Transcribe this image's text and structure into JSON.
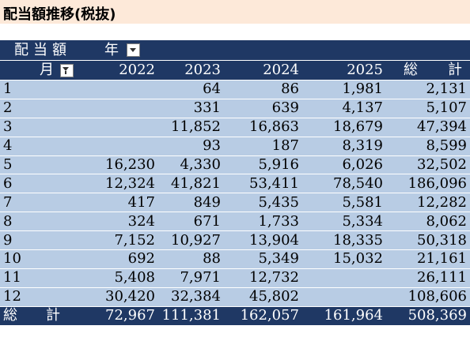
{
  "title": "配当額推移(税抜)",
  "pivot": {
    "corner_label": "配当額",
    "column_field": "年",
    "row_field": "月",
    "years": [
      "2022",
      "2023",
      "2024",
      "2025"
    ],
    "grand_total_label_1": "総",
    "grand_total_label_2": "計",
    "rows": [
      {
        "month": "1",
        "v2022": "",
        "v2023": "64",
        "v2024": "86",
        "v2025": "1,981",
        "total": "2,131"
      },
      {
        "month": "2",
        "v2022": "",
        "v2023": "331",
        "v2024": "639",
        "v2025": "4,137",
        "total": "5,107"
      },
      {
        "month": "3",
        "v2022": "",
        "v2023": "11,852",
        "v2024": "16,863",
        "v2025": "18,679",
        "total": "47,394"
      },
      {
        "month": "4",
        "v2022": "",
        "v2023": "93",
        "v2024": "187",
        "v2025": "8,319",
        "total": "8,599"
      },
      {
        "month": "5",
        "v2022": "16,230",
        "v2023": "4,330",
        "v2024": "5,916",
        "v2025": "6,026",
        "total": "32,502"
      },
      {
        "month": "6",
        "v2022": "12,324",
        "v2023": "41,821",
        "v2024": "53,411",
        "v2025": "78,540",
        "total": "186,096"
      },
      {
        "month": "7",
        "v2022": "417",
        "v2023": "849",
        "v2024": "5,435",
        "v2025": "5,581",
        "total": "12,282"
      },
      {
        "month": "8",
        "v2022": "324",
        "v2023": "671",
        "v2024": "1,733",
        "v2025": "5,334",
        "total": "8,062"
      },
      {
        "month": "9",
        "v2022": "7,152",
        "v2023": "10,927",
        "v2024": "13,904",
        "v2025": "18,335",
        "total": "50,318"
      },
      {
        "month": "10",
        "v2022": "692",
        "v2023": "88",
        "v2024": "5,349",
        "v2025": "15,032",
        "total": "21,161"
      },
      {
        "month": "11",
        "v2022": "5,408",
        "v2023": "7,971",
        "v2024": "12,732",
        "v2025": "",
        "total": "26,111"
      },
      {
        "month": "12",
        "v2022": "30,420",
        "v2023": "32,384",
        "v2024": "45,802",
        "v2025": "",
        "total": "108,606"
      }
    ],
    "totals": {
      "label": "総　　計",
      "v2022": "72,967",
      "v2023": "111,381",
      "v2024": "162,057",
      "v2025": "161,964",
      "total": "508,369"
    }
  },
  "colors": {
    "title_bg": "#fde9d9",
    "header_bg": "#1f3864",
    "row_bg": "#b8cce4"
  }
}
